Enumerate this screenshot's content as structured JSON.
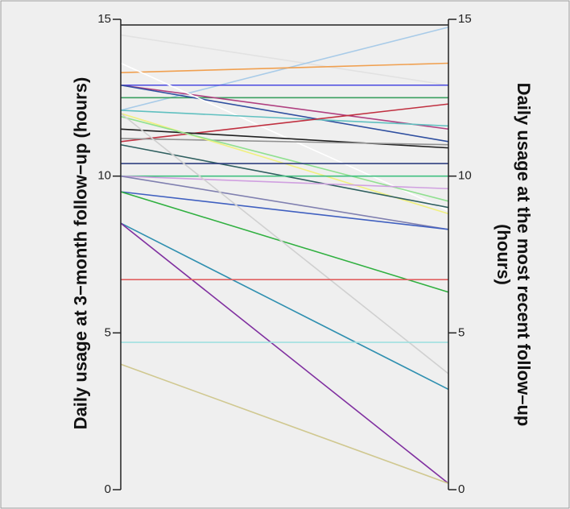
{
  "chart_data": {
    "type": "slope",
    "y_label": "Daily usage at 3−month follow−up (hours)",
    "y2_label": "Daily usage at the most recent follow–up (hours)",
    "ylim": [
      0,
      15
    ],
    "yticks": [
      0,
      5,
      10,
      15
    ],
    "y2lim": [
      0,
      15
    ],
    "y2ticks": [
      0,
      5,
      10,
      15
    ],
    "series": [
      {
        "color": "#e2e2e2",
        "values": [
          14.5,
          12.9
        ]
      },
      {
        "color": "#a8cbe8",
        "values": [
          12.1,
          14.75
        ]
      },
      {
        "color": "#f0a050",
        "values": [
          13.3,
          13.6
        ]
      },
      {
        "color": "#4a4ae0",
        "values": [
          12.9,
          12.9
        ]
      },
      {
        "color": "#3aa060",
        "values": [
          12.5,
          12.5
        ]
      },
      {
        "color": "#b04080",
        "values": [
          12.9,
          11.5
        ]
      },
      {
        "color": "#3050a0",
        "values": [
          12.9,
          11.1
        ]
      },
      {
        "color": "#ffffff",
        "values": [
          13.6,
          8.9
        ]
      },
      {
        "color": "#60c0c0",
        "values": [
          12.1,
          11.6
        ]
      },
      {
        "color": "#c03040",
        "values": [
          11.1,
          12.3
        ]
      },
      {
        "color": "#202020",
        "values": [
          11.5,
          10.9
        ]
      },
      {
        "color": "#909090",
        "values": [
          11.2,
          11.0
        ]
      },
      {
        "color": "#f0f080",
        "values": [
          12.0,
          8.8
        ]
      },
      {
        "color": "#90e090",
        "values": [
          11.9,
          9.2
        ]
      },
      {
        "color": "#306060",
        "values": [
          11.0,
          9.0
        ]
      },
      {
        "color": "#304080",
        "values": [
          10.4,
          10.4
        ]
      },
      {
        "color": "#40c080",
        "values": [
          10.0,
          10.0
        ]
      },
      {
        "color": "#d0a0e0",
        "values": [
          10.0,
          9.6
        ]
      },
      {
        "color": "#8080b0",
        "values": [
          10.0,
          8.3
        ]
      },
      {
        "color": "#4060c0",
        "values": [
          9.5,
          8.3
        ]
      },
      {
        "color": "#30b040",
        "values": [
          9.5,
          6.3
        ]
      },
      {
        "color": "#d0d0d0",
        "values": [
          12.0,
          3.7
        ]
      },
      {
        "color": "#3090b0",
        "values": [
          8.5,
          3.2
        ]
      },
      {
        "color": "#8030a0",
        "values": [
          8.5,
          0.2
        ]
      },
      {
        "color": "#e06060",
        "values": [
          6.7,
          6.7
        ]
      },
      {
        "color": "#a0e0e0",
        "values": [
          4.7,
          4.7
        ]
      },
      {
        "color": "#d0c890",
        "values": [
          4.0,
          0.2
        ]
      }
    ]
  }
}
